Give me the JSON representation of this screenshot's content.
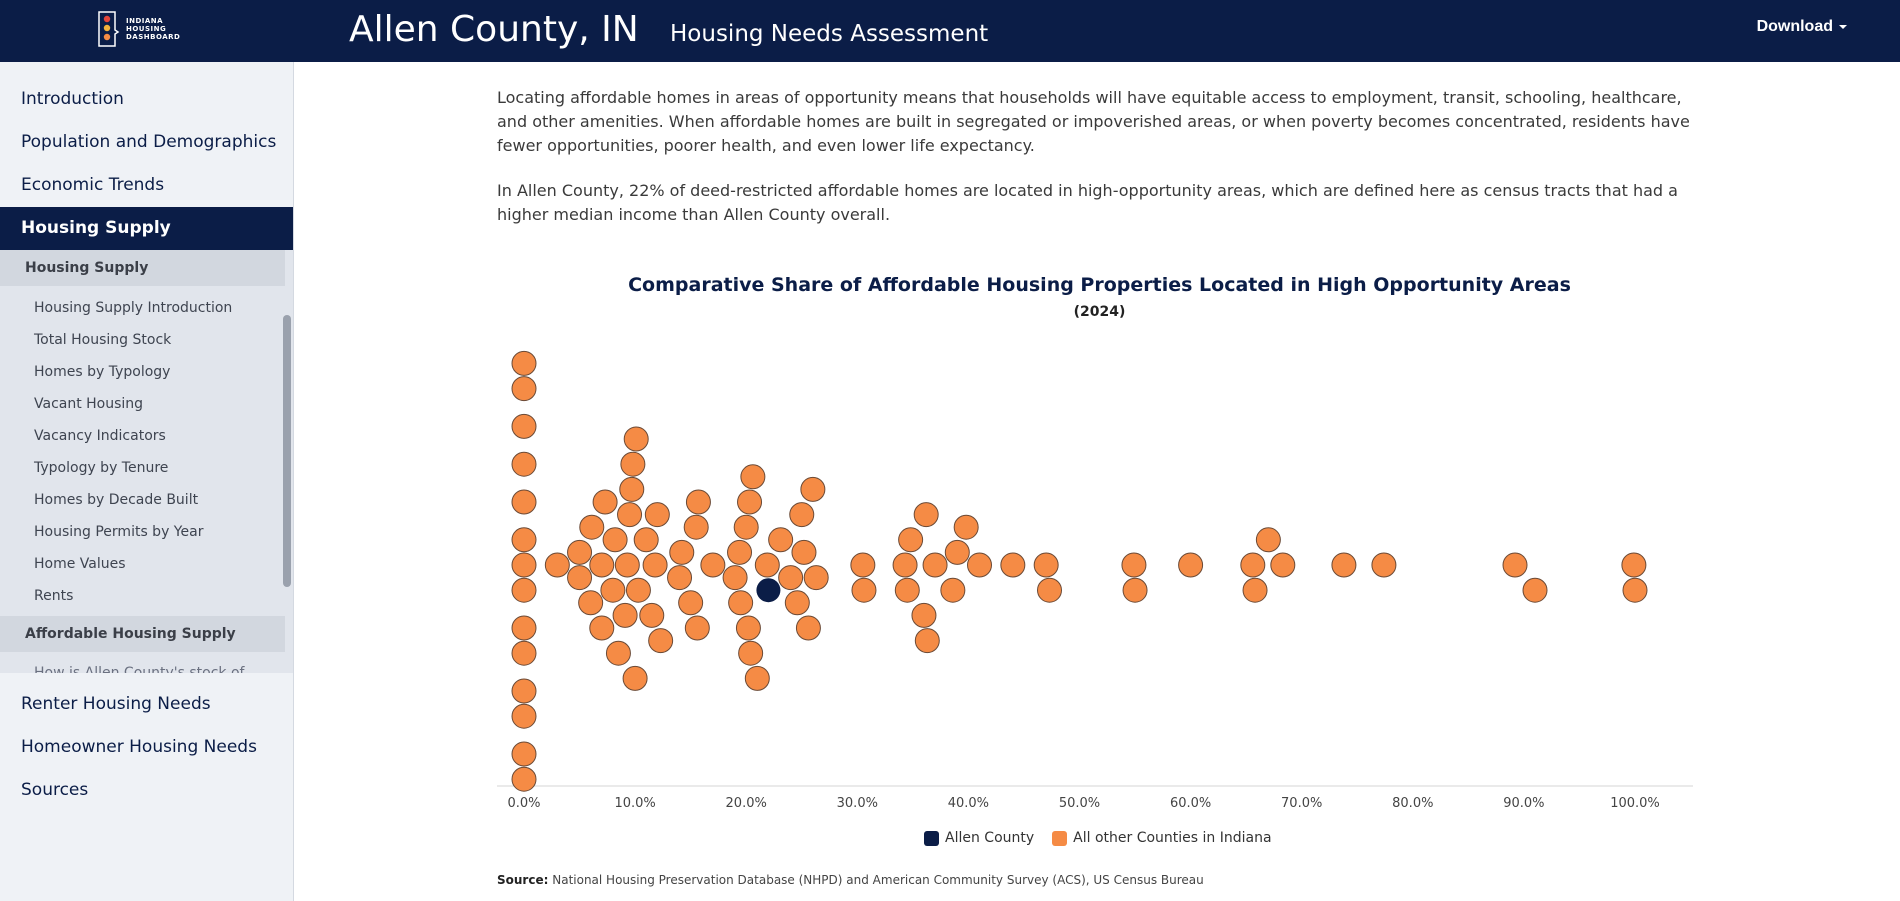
{
  "header": {
    "logo_text": "INDIANA HOUSING DASHBOARD",
    "county_title": "Allen County, IN",
    "report_title": "Housing Needs Assessment",
    "download_label": "Download"
  },
  "sidebar": {
    "items": [
      {
        "label": "Introduction"
      },
      {
        "label": "Population and Demographics"
      },
      {
        "label": "Economic Trends"
      },
      {
        "label": "Housing Supply"
      },
      {
        "label": "Renter Housing Needs"
      },
      {
        "label": "Homeowner Housing Needs"
      },
      {
        "label": "Sources"
      }
    ],
    "subsections": [
      {
        "header": "Housing Supply",
        "items": [
          "Housing Supply Introduction",
          "Total Housing Stock",
          "Homes by Typology",
          "Vacant Housing",
          "Vacancy Indicators",
          "Typology by Tenure",
          "Homes by Decade Built",
          "Housing Permits by Year",
          "Home Values",
          "Rents"
        ]
      },
      {
        "header": "Affordable Housing Supply",
        "items": [
          "How is Allen County's stock of"
        ]
      }
    ]
  },
  "content": {
    "paragraph1": "Locating affordable homes in areas of opportunity means that households will have equitable access to employment, transit, schooling, healthcare, and other amenities. When affordable homes are built in segregated or impoverished areas, or when poverty becomes concentrated, residents have fewer opportunities, poorer health, and even lower life expectancy.",
    "paragraph2": "In Allen County, 22% of deed-restricted affordable homes are located in high-opportunity areas, which are defined here as census tracts that had a higher median income than Allen County overall.",
    "source_label": "Source:",
    "source_text": "National Housing Preservation Database (NHPD) and American Community Survey (ACS), US Census Bureau"
  },
  "chart_data": {
    "type": "scatter",
    "title": "Comparative Share of Affordable Housing Properties Located in High Opportunity Areas",
    "subtitle": "(2024)",
    "xlim": [
      0,
      100
    ],
    "x_ticks": [
      "0.0%",
      "10.0%",
      "20.0%",
      "30.0%",
      "40.0%",
      "50.0%",
      "60.0%",
      "70.0%",
      "80.0%",
      "90.0%",
      "100.0%"
    ],
    "legend": [
      "Allen County",
      "All other Counties in Indiana"
    ],
    "colors": {
      "highlight": "#0b1d47",
      "others": "#f58b45",
      "outline": "#6b4a36"
    },
    "series": [
      {
        "name": "Allen County",
        "values": [
          22.0
        ]
      },
      {
        "name": "All other Counties in Indiana",
        "values": [
          0,
          0,
          0,
          0,
          0,
          0,
          0,
          0,
          0,
          0,
          0,
          0,
          0,
          0,
          3.0,
          5.0,
          5.0,
          6.0,
          6.1,
          7.0,
          7.0,
          7.3,
          8.0,
          8.2,
          8.5,
          9.1,
          9.3,
          9.5,
          9.7,
          9.8,
          10.0,
          10.1,
          10.3,
          11.0,
          11.5,
          11.8,
          12.0,
          12.3,
          14.0,
          14.2,
          15.0,
          15.5,
          15.6,
          15.7,
          17.0,
          19.0,
          19.4,
          19.5,
          20.0,
          20.2,
          20.3,
          20.4,
          20.6,
          21.0,
          21.9,
          23.1,
          24.0,
          24.6,
          25.0,
          25.2,
          25.6,
          26.0,
          26.3,
          30.5,
          30.6,
          34.3,
          34.5,
          34.8,
          36.0,
          36.2,
          36.3,
          37.0,
          38.6,
          39.0,
          39.8,
          41.0,
          44.0,
          47.0,
          47.3,
          54.9,
          55.0,
          60.0,
          65.6,
          65.8,
          67.0,
          68.3,
          73.8,
          77.4,
          89.2,
          91.0,
          99.9,
          100.0
        ]
      }
    ]
  }
}
